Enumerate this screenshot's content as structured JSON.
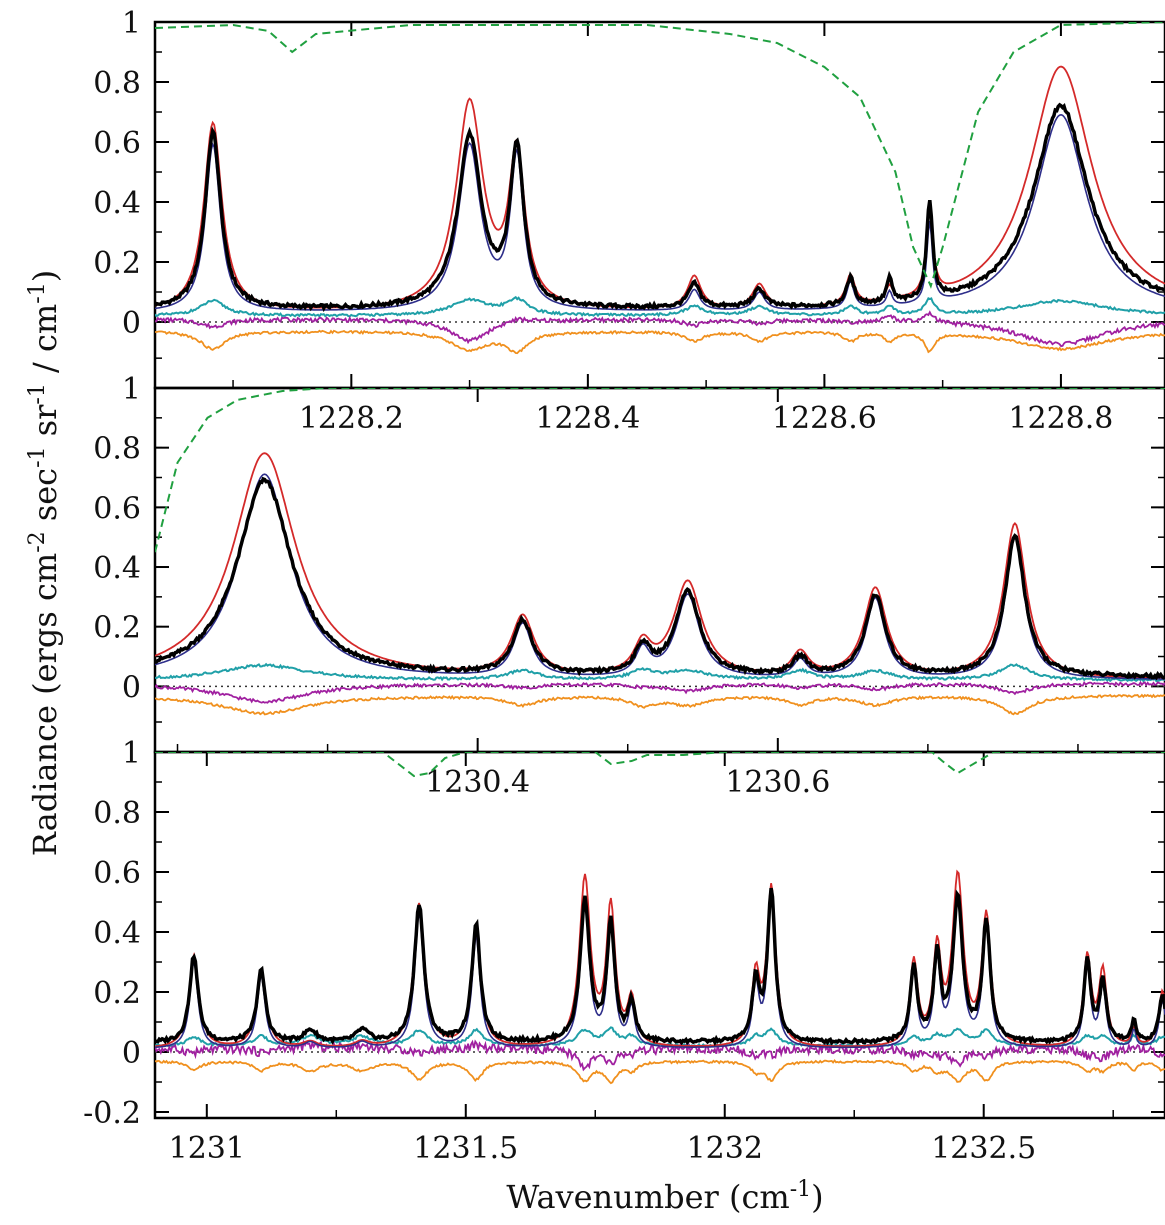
{
  "chart_data": [
    {
      "type": "line",
      "panel": "top",
      "xlim": [
        1228.034,
        1228.888
      ],
      "ylim": [
        -0.22,
        1.0
      ],
      "xticks": [
        1228.2,
        1228.4,
        1228.6,
        1228.8
      ],
      "xtick_labels": [
        "1228.2",
        "1228.4",
        "1228.6",
        "1228.8"
      ],
      "xtick_labels_position": "inside-bottom",
      "yticks": [
        0,
        0.2,
        0.4,
        0.6,
        0.8,
        1
      ],
      "ytick_labels": [
        "0",
        "0.2",
        "0.4",
        "0.6",
        "0.8",
        "1"
      ],
      "peaks": [
        {
          "x": 1228.083,
          "obs": 0.59,
          "red": 0.63,
          "blue": 0.56,
          "w": 0.008
        },
        {
          "x": 1228.3,
          "obs": 0.57,
          "red": 0.69,
          "blue": 0.55,
          "w": 0.012
        },
        {
          "x": 1228.34,
          "obs": 0.52,
          "red": 0.5,
          "blue": 0.5,
          "w": 0.007
        },
        {
          "x": 1228.49,
          "obs": 0.08,
          "red": 0.11,
          "blue": 0.07,
          "w": 0.006
        },
        {
          "x": 1228.545,
          "obs": 0.06,
          "red": 0.08,
          "blue": 0.06,
          "w": 0.006
        },
        {
          "x": 1228.622,
          "obs": 0.09,
          "red": 0.1,
          "blue": 0.09,
          "w": 0.004
        },
        {
          "x": 1228.655,
          "obs": 0.08,
          "red": 0.05,
          "blue": 0.05,
          "w": 0.003
        },
        {
          "x": 1228.689,
          "obs": 0.33,
          "red": 0.28,
          "blue": 0.27,
          "w": 0.003
        },
        {
          "x": 1228.8,
          "obs": 0.68,
          "red": 0.82,
          "blue": 0.66,
          "w": 0.028
        }
      ],
      "baseline": {
        "obs": 0.04,
        "red": 0.03,
        "blue": 0.03
      },
      "transmission": [
        {
          "x": 1228.034,
          "y": 0.98
        },
        {
          "x": 1228.1,
          "y": 0.99
        },
        {
          "x": 1228.13,
          "y": 0.97
        },
        {
          "x": 1228.15,
          "y": 0.9
        },
        {
          "x": 1228.17,
          "y": 0.96
        },
        {
          "x": 1228.25,
          "y": 0.99
        },
        {
          "x": 1228.45,
          "y": 0.99
        },
        {
          "x": 1228.52,
          "y": 0.96
        },
        {
          "x": 1228.56,
          "y": 0.93
        },
        {
          "x": 1228.6,
          "y": 0.85
        },
        {
          "x": 1228.63,
          "y": 0.75
        },
        {
          "x": 1228.66,
          "y": 0.5
        },
        {
          "x": 1228.675,
          "y": 0.25
        },
        {
          "x": 1228.69,
          "y": 0.12
        },
        {
          "x": 1228.7,
          "y": 0.25
        },
        {
          "x": 1228.73,
          "y": 0.7
        },
        {
          "x": 1228.76,
          "y": 0.9
        },
        {
          "x": 1228.8,
          "y": 0.99
        },
        {
          "x": 1228.888,
          "y": 1.0
        }
      ]
    },
    {
      "type": "line",
      "panel": "middle",
      "xlim": [
        1230.185,
        1230.858
      ],
      "ylim": [
        -0.22,
        1.0
      ],
      "xticks": [
        1230.4,
        1230.6
      ],
      "xtick_labels": [
        "1230.4",
        "1230.6"
      ],
      "xtick_labels_position": "inside-bottom",
      "yticks": [
        0,
        0.2,
        0.4,
        0.6,
        0.8,
        1
      ],
      "ytick_labels": [
        "0",
        "0.2",
        "0.4",
        "0.6",
        "0.8",
        "1"
      ],
      "peaks": [
        {
          "x": 1230.258,
          "obs": 0.66,
          "red": 0.76,
          "blue": 0.69,
          "w": 0.022
        },
        {
          "x": 1230.43,
          "obs": 0.18,
          "red": 0.2,
          "blue": 0.18,
          "w": 0.008
        },
        {
          "x": 1230.51,
          "obs": 0.09,
          "red": 0.1,
          "blue": 0.09,
          "w": 0.006
        },
        {
          "x": 1230.54,
          "obs": 0.28,
          "red": 0.32,
          "blue": 0.28,
          "w": 0.01
        },
        {
          "x": 1230.615,
          "obs": 0.06,
          "red": 0.08,
          "blue": 0.06,
          "w": 0.006
        },
        {
          "x": 1230.665,
          "obs": 0.27,
          "red": 0.3,
          "blue": 0.27,
          "w": 0.008
        },
        {
          "x": 1230.758,
          "obs": 0.47,
          "red": 0.52,
          "blue": 0.48,
          "w": 0.008
        }
      ],
      "baseline": {
        "obs": 0.03,
        "red": 0.02,
        "blue": 0.02
      },
      "transmission": [
        {
          "x": 1230.185,
          "y": 0.45
        },
        {
          "x": 1230.2,
          "y": 0.75
        },
        {
          "x": 1230.22,
          "y": 0.9
        },
        {
          "x": 1230.24,
          "y": 0.96
        },
        {
          "x": 1230.27,
          "y": 0.99
        },
        {
          "x": 1230.3,
          "y": 1.0
        },
        {
          "x": 1230.858,
          "y": 1.0
        }
      ]
    },
    {
      "type": "line",
      "panel": "bottom",
      "xlim": [
        1230.9,
        1232.85
      ],
      "ylim": [
        -0.22,
        1.0
      ],
      "xticks": [
        1231,
        1231.5,
        1232,
        1232.5
      ],
      "xtick_labels": [
        "1231",
        "1231.5",
        "1232",
        "1232.5"
      ],
      "yticks": [
        -0.2,
        0,
        0.2,
        0.4,
        0.6,
        0.8,
        1
      ],
      "ytick_labels": [
        "-0.2",
        "0",
        "0.2",
        "0.4",
        "0.6",
        "0.8",
        "1"
      ],
      "peaks": [
        {
          "x": 1230.975,
          "obs": 0.29,
          "red": 0.31,
          "blue": 0.29,
          "w": 0.01
        },
        {
          "x": 1231.105,
          "obs": 0.24,
          "red": 0.26,
          "blue": 0.24,
          "w": 0.01
        },
        {
          "x": 1231.2,
          "obs": 0.04,
          "red": 0.02,
          "blue": 0.02,
          "w": 0.015
        },
        {
          "x": 1231.3,
          "obs": 0.04,
          "red": 0.02,
          "blue": 0.02,
          "w": 0.015
        },
        {
          "x": 1231.41,
          "obs": 0.46,
          "red": 0.48,
          "blue": 0.45,
          "w": 0.011
        },
        {
          "x": 1231.52,
          "obs": 0.39,
          "red": 0.37,
          "blue": 0.37,
          "w": 0.01
        },
        {
          "x": 1231.73,
          "obs": 0.47,
          "red": 0.56,
          "blue": 0.47,
          "w": 0.011
        },
        {
          "x": 1231.78,
          "obs": 0.39,
          "red": 0.46,
          "blue": 0.39,
          "w": 0.009
        },
        {
          "x": 1231.82,
          "obs": 0.13,
          "red": 0.15,
          "blue": 0.13,
          "w": 0.008
        },
        {
          "x": 1232.06,
          "obs": 0.2,
          "red": 0.23,
          "blue": 0.2,
          "w": 0.008
        },
        {
          "x": 1232.09,
          "obs": 0.5,
          "red": 0.53,
          "blue": 0.5,
          "w": 0.009
        },
        {
          "x": 1232.365,
          "obs": 0.25,
          "red": 0.28,
          "blue": 0.25,
          "w": 0.008
        },
        {
          "x": 1232.41,
          "obs": 0.28,
          "red": 0.31,
          "blue": 0.28,
          "w": 0.008
        },
        {
          "x": 1232.45,
          "obs": 0.48,
          "red": 0.56,
          "blue": 0.48,
          "w": 0.011
        },
        {
          "x": 1232.505,
          "obs": 0.4,
          "red": 0.43,
          "blue": 0.4,
          "w": 0.009
        },
        {
          "x": 1232.7,
          "obs": 0.27,
          "red": 0.3,
          "blue": 0.27,
          "w": 0.008
        },
        {
          "x": 1232.73,
          "obs": 0.2,
          "red": 0.25,
          "blue": 0.2,
          "w": 0.008
        },
        {
          "x": 1232.79,
          "obs": 0.08,
          "red": 0.06,
          "blue": 0.06,
          "w": 0.005
        },
        {
          "x": 1232.845,
          "obs": 0.16,
          "red": 0.19,
          "blue": 0.16,
          "w": 0.008
        }
      ],
      "baseline": {
        "obs": 0.03,
        "red": 0.01,
        "blue": 0.01
      },
      "transmission": [
        {
          "x": 1230.9,
          "y": 1.0
        },
        {
          "x": 1231.34,
          "y": 1.0
        },
        {
          "x": 1231.37,
          "y": 0.96
        },
        {
          "x": 1231.4,
          "y": 0.92
        },
        {
          "x": 1231.43,
          "y": 0.93
        },
        {
          "x": 1231.46,
          "y": 0.98
        },
        {
          "x": 1231.5,
          "y": 1.0
        },
        {
          "x": 1231.75,
          "y": 1.0
        },
        {
          "x": 1231.78,
          "y": 0.96
        },
        {
          "x": 1231.82,
          "y": 0.97
        },
        {
          "x": 1231.85,
          "y": 0.99
        },
        {
          "x": 1231.92,
          "y": 0.99
        },
        {
          "x": 1232.0,
          "y": 1.0
        },
        {
          "x": 1232.4,
          "y": 1.0
        },
        {
          "x": 1232.42,
          "y": 0.97
        },
        {
          "x": 1232.45,
          "y": 0.93
        },
        {
          "x": 1232.49,
          "y": 0.97
        },
        {
          "x": 1232.52,
          "y": 1.0
        },
        {
          "x": 1232.85,
          "y": 1.0
        }
      ]
    }
  ],
  "axes": {
    "ylabel_main": "Radiance (ergs cm",
    "ylabel_exp1": "-2",
    "ylabel_mid1": " sec",
    "ylabel_exp2": "-1",
    "ylabel_mid2": " sr",
    "ylabel_exp3": "-1",
    "ylabel_mid3": " / cm",
    "ylabel_exp4": "-1",
    "ylabel_end": ")",
    "xlabel_main": "Wavenumber (cm",
    "xlabel_exp": "-1",
    "xlabel_end": ")"
  },
  "colors": {
    "observed": "#000000",
    "model_red": "#d42a2a",
    "model_blue": "#2e2e8a",
    "residual_purple": "#a020a0",
    "residual_teal": "#20a0a8",
    "residual_orange": "#f0901e",
    "transmission": "#20a040",
    "zero_line": "#333333"
  }
}
